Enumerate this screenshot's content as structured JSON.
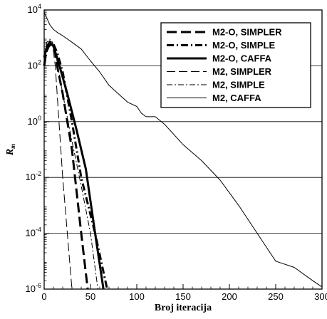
{
  "chart_data": {
    "type": "line",
    "xlabel": "Broj iteracija",
    "ylabel_main": "R",
    "ylabel_sub": "m",
    "xlim": [
      0,
      300
    ],
    "ylim": [
      1e-06,
      10000.0
    ],
    "yscale": "log",
    "x_ticks": [
      0,
      50,
      100,
      150,
      200,
      250,
      300
    ],
    "y_ticks": [
      {
        "value": 10000.0,
        "base": "10",
        "exp": "4"
      },
      {
        "value": 100.0,
        "base": "10",
        "exp": "2"
      },
      {
        "value": 1.0,
        "base": "10",
        "exp": "0"
      },
      {
        "value": 0.01,
        "base": "10",
        "exp": "-2"
      },
      {
        "value": 0.0001,
        "base": "10",
        "exp": "-4"
      },
      {
        "value": 1e-06,
        "base": "10",
        "exp": "-6"
      }
    ],
    "grid": "horizontal lines at major y ticks",
    "legend_position": "top-right",
    "series": [
      {
        "name": "M2-O, SIMPLER",
        "style": "long-dash thick",
        "points": [
          [
            0,
            100
          ],
          [
            2,
            300
          ],
          [
            5,
            500
          ],
          [
            8,
            600
          ],
          [
            11,
            450
          ],
          [
            14,
            100
          ],
          [
            20,
            10
          ],
          [
            30,
            0.1
          ],
          [
            40,
            0.0001
          ],
          [
            47,
            1e-06
          ]
        ]
      },
      {
        "name": "M2-O, SIMPLE",
        "style": "dash-dot thick",
        "points": [
          [
            0,
            100
          ],
          [
            3,
            400
          ],
          [
            7,
            700
          ],
          [
            10,
            600
          ],
          [
            14,
            300
          ],
          [
            20,
            60
          ],
          [
            30,
            1
          ],
          [
            40,
            0.01
          ],
          [
            55,
            0.0001
          ],
          [
            68,
            1e-06
          ]
        ]
      },
      {
        "name": "M2-O, CAFFA",
        "style": "solid thick",
        "points": [
          [
            0,
            200
          ],
          [
            3,
            500
          ],
          [
            6,
            700
          ],
          [
            10,
            500
          ],
          [
            15,
            150
          ],
          [
            25,
            10
          ],
          [
            35,
            0.5
          ],
          [
            45,
            0.02
          ],
          [
            55,
            0.0001
          ],
          [
            64,
            1e-06
          ]
        ]
      },
      {
        "name": "M2, SIMPLER",
        "style": "long-dash thin",
        "points": [
          [
            0,
            100
          ],
          [
            3,
            600
          ],
          [
            6,
            800
          ],
          [
            9,
            600
          ],
          [
            12,
            100
          ],
          [
            16,
            1
          ],
          [
            20,
            0.01
          ],
          [
            25,
            0.0001
          ],
          [
            30,
            1e-06
          ]
        ]
      },
      {
        "name": "M2, SIMPLE",
        "style": "dash-dot thin",
        "points": [
          [
            0,
            200
          ],
          [
            3,
            700
          ],
          [
            6,
            900
          ],
          [
            9,
            700
          ],
          [
            13,
            200
          ],
          [
            20,
            10
          ],
          [
            30,
            0.2
          ],
          [
            40,
            0.005
          ],
          [
            50,
            0.0001
          ],
          [
            58,
            1e-06
          ]
        ]
      },
      {
        "name": "M2, CAFFA",
        "style": "solid thin",
        "points": [
          [
            0,
            8000
          ],
          [
            3,
            5000
          ],
          [
            6,
            3000
          ],
          [
            10,
            2000
          ],
          [
            15,
            1500
          ],
          [
            20,
            1200
          ],
          [
            30,
            700
          ],
          [
            40,
            400
          ],
          [
            50,
            150
          ],
          [
            60,
            60
          ],
          [
            70,
            20
          ],
          [
            80,
            10
          ],
          [
            90,
            5
          ],
          [
            100,
            3.5
          ],
          [
            105,
            2
          ],
          [
            110,
            1.5
          ],
          [
            120,
            1.5
          ],
          [
            130,
            0.8
          ],
          [
            150,
            0.15
          ],
          [
            170,
            0.04
          ],
          [
            190,
            0.008
          ],
          [
            210,
            0.001
          ],
          [
            230,
            0.0001
          ],
          [
            250,
            1e-05
          ],
          [
            270,
            6e-06
          ],
          [
            290,
            2e-06
          ],
          [
            300,
            1.2e-06
          ]
        ]
      }
    ]
  }
}
